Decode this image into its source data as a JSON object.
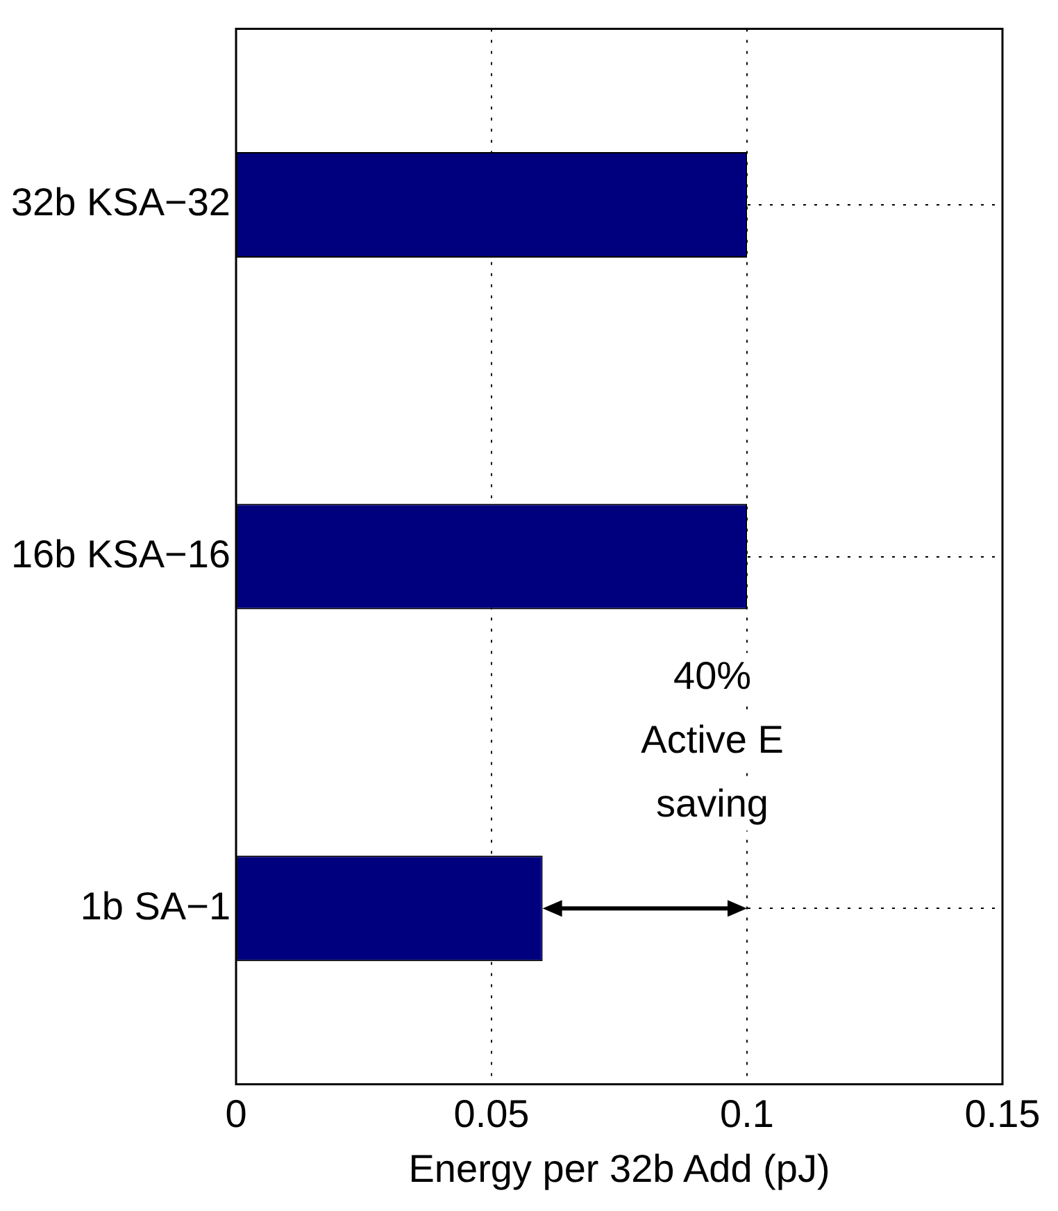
{
  "chart_data": {
    "type": "bar",
    "orientation": "horizontal",
    "xlabel": "Energy per 32b Add (pJ)",
    "categories": [
      "32b KSA−32",
      "16b KSA−16",
      "1b SA−1"
    ],
    "values": [
      0.1,
      0.1,
      0.06
    ],
    "color": "#00007f",
    "xlim": [
      0,
      0.15
    ],
    "xticks": [
      0,
      0.05,
      0.1,
      0.15
    ],
    "grid": true,
    "legend": false,
    "annotations": [
      "40%\nActive E\nsaving"
    ]
  }
}
